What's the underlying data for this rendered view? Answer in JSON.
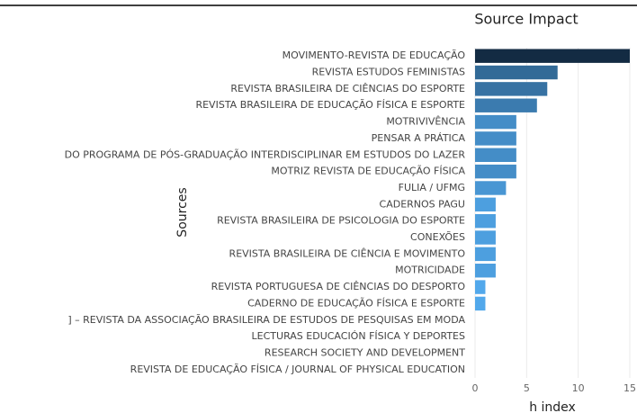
{
  "chart_data": {
    "type": "bar",
    "orientation": "horizontal",
    "title": "Source Impact",
    "x_label": "h index",
    "y_label": "Sources",
    "categories": [
      "MOVIMENTO-REVISTA DE EDUCAÇÃO",
      "REVISTA ESTUDOS FEMINISTAS",
      "REVISTA BRASILEIRA DE CIÊNCIAS DO ESPORTE",
      "REVISTA BRASILEIRA DE EDUCAÇÃO FÍSICA E ESPORTE",
      "MOTRIVIVÊNCIA",
      "PENSAR A PRÁTICA",
      "DO PROGRAMA DE PÓS-GRADUAÇÃO INTERDISCIPLINAR EM ESTUDOS DO LAZER",
      "MOTRIZ REVISTA DE EDUCAÇÃO FÍSICA",
      "FULIA / UFMG",
      "CADERNOS PAGU",
      "REVISTA BRASILEIRA DE PSICOLOGIA DO ESPORTE",
      "CONEXÕES",
      "REVISTA BRASILEIRA DE CIÊNCIA E MOVIMENTO",
      "MOTRICIDADE",
      "REVISTA PORTUGUESA DE CIÊNCIAS DO DESPORTO",
      "CADERNO DE EDUCAÇÃO FÍSICA E ESPORTE",
      "] – REVISTA DA ASSOCIAÇÃO BRASILEIRA DE ESTUDOS DE PESQUISAS EM MODA",
      "LECTURAS EDUCACIÓN FÍSICA Y DEPORTES",
      "RESEARCH SOCIETY AND DEVELOPMENT",
      "REVISTA DE EDUCAÇÃO FÍSICA / JOURNAL OF PHYSICAL EDUCATION"
    ],
    "values": [
      15,
      8,
      7,
      6,
      4,
      4,
      4,
      4,
      3,
      2,
      2,
      2,
      2,
      2,
      1,
      1,
      0,
      0,
      0,
      0
    ],
    "color_low": "#56B1F7",
    "color_high": "#132B43",
    "xlim": [
      0,
      15
    ],
    "xticks": [
      0,
      5,
      10,
      15
    ],
    "grid": true
  }
}
